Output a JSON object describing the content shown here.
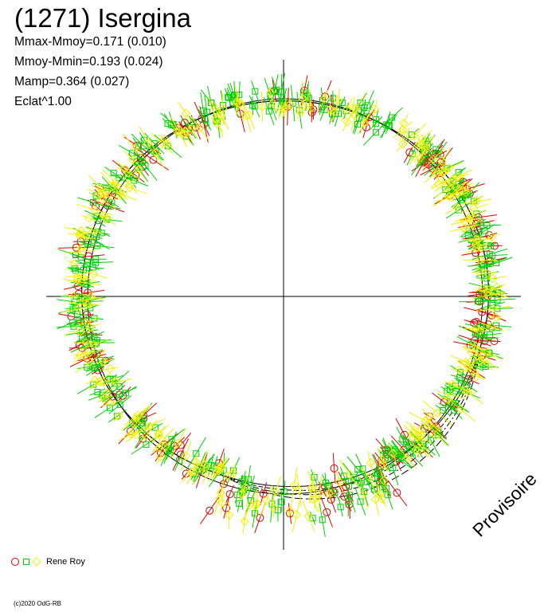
{
  "header": {
    "title": "(1271) Isergina",
    "stats": [
      "Mmax-Mmoy=0.171 (0.010)",
      "Mmoy-Mmin=0.193 (0.024)",
      "Mamp=0.364 (0.027)",
      "Eclat^1.00"
    ]
  },
  "legend": {
    "observer": "Rene Roy",
    "symbols": [
      "circle",
      "square",
      "diamond"
    ],
    "colors": [
      "#e00000",
      "#00d000",
      "#f0f000"
    ]
  },
  "watermark": "Provisoire",
  "copyright": "(c)2020 OdG-RB",
  "chart_data": {
    "type": "scatter",
    "coordinate_system": "polar",
    "axes": {
      "crosshair": true
    },
    "model_curve": {
      "angular_points": [
        0,
        30,
        60,
        90,
        120,
        150,
        180,
        210,
        240,
        270,
        300,
        330
      ],
      "radius_relative": [
        1.0,
        1.02,
        1.03,
        1.02,
        0.98,
        0.95,
        0.97,
        1.0,
        1.0,
        1.0,
        0.99,
        0.99
      ]
    },
    "series": [
      {
        "name": "",
        "symbol": "circle",
        "color": "#e00000",
        "count": 140
      },
      {
        "name": "",
        "symbol": "square",
        "color": "#00d000",
        "count": 320
      },
      {
        "name": "",
        "symbol": "diamond",
        "color": "#f0f000",
        "count": 260
      }
    ]
  }
}
